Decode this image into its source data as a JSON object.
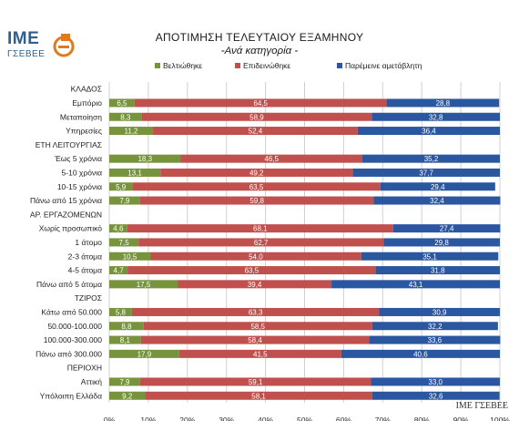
{
  "logo": {
    "brand": "IME",
    "org": "ΓΣΕΒΕΕ"
  },
  "footer": "IME ΓΣΕΒΕΕ",
  "colors": {
    "improved": "#77933c",
    "worsened": "#c0504d",
    "unchanged": "#2b56a0"
  },
  "chart_data": {
    "type": "bar",
    "orientation": "horizontal",
    "stacked": true,
    "percent_stacked": true,
    "title": "ΑΠΟΤΙΜΗΣΗ ΤΕΛΕΥΤΑΙΟΥ ΕΞΑΜΗΝΟΥ",
    "subtitle": "-Ανά κατηγορία -",
    "legend_position": "top",
    "xlim": [
      0,
      100
    ],
    "x_ticks": [
      "0%",
      "10%",
      "20%",
      "30%",
      "40%",
      "50%",
      "60%",
      "70%",
      "80%",
      "90%",
      "100%"
    ],
    "grid": true,
    "series": [
      {
        "name": "Βελτιώθηκε",
        "color": "#77933c"
      },
      {
        "name": "Επιδεινώθηκε",
        "color": "#c0504d"
      },
      {
        "name": "Παρέμεινε αμετάβλητη",
        "color": "#2b56a0"
      }
    ],
    "rows": [
      {
        "label": "ΚΛΑΔΟΣ",
        "header": true
      },
      {
        "label": "Εμπόριο",
        "values": [
          6.5,
          64.5,
          28.8
        ],
        "labels": [
          "6,5",
          "64,5",
          "28,8"
        ]
      },
      {
        "label": "Μεταποίηση",
        "values": [
          8.3,
          58.9,
          32.8
        ],
        "labels": [
          "8,3",
          "58,9",
          "32,8"
        ]
      },
      {
        "label": "Υπηρεσίες",
        "values": [
          11.2,
          52.4,
          36.4
        ],
        "labels": [
          "11,2",
          "52,4",
          "36,4"
        ]
      },
      {
        "label": "ΕΤΗ ΛΕΙΤΟΥΡΓΙΑΣ",
        "header": true
      },
      {
        "label": "Έως 5 χρόνια",
        "values": [
          18.3,
          46.5,
          35.2
        ],
        "labels": [
          "18,3",
          "46,5",
          "35,2"
        ]
      },
      {
        "label": "5-10 χρόνια",
        "values": [
          13.1,
          49.2,
          37.7
        ],
        "labels": [
          "13,1",
          "49,2",
          "37,7"
        ]
      },
      {
        "label": "10-15 χρόνια",
        "values": [
          5.9,
          63.5,
          29.4
        ],
        "labels": [
          "5,9",
          "63,5",
          "29,4"
        ]
      },
      {
        "label": "Πάνω από 15 χρόνια",
        "values": [
          7.9,
          59.8,
          32.4
        ],
        "labels": [
          "7,9",
          "59,8",
          "32,4"
        ]
      },
      {
        "label": "ΑΡ. ΕΡΓΑΖΟΜΕΝΩΝ",
        "header": true
      },
      {
        "label": "Χωρίς προσωπικό",
        "values": [
          4.6,
          68.1,
          27.4
        ],
        "labels": [
          "4,6",
          "68,1",
          "27,4"
        ]
      },
      {
        "label": "1 άτομο",
        "values": [
          7.5,
          62.7,
          29.8
        ],
        "labels": [
          "7,5",
          "62,7",
          "29,8"
        ]
      },
      {
        "label": "2-3 άτομα",
        "values": [
          10.5,
          54.0,
          35.1
        ],
        "labels": [
          "10,5",
          "54,0",
          "35,1"
        ]
      },
      {
        "label": "4-5 άτομα",
        "values": [
          4.7,
          63.5,
          31.8
        ],
        "labels": [
          "4,7",
          "63,5",
          "31,8"
        ]
      },
      {
        "label": "Πάνω από 5 άτομα",
        "values": [
          17.5,
          39.4,
          43.1
        ],
        "labels": [
          "17,5",
          "39,4",
          "43,1"
        ]
      },
      {
        "label": "ΤΖΙΡΟΣ",
        "header": true
      },
      {
        "label": "Κάτω από 50.000",
        "values": [
          5.8,
          63.3,
          30.9
        ],
        "labels": [
          "5,8",
          "63,3",
          "30,9"
        ]
      },
      {
        "label": "50.000-100.000",
        "values": [
          8.8,
          58.5,
          32.2
        ],
        "labels": [
          "8,8",
          "58,5",
          "32,2"
        ]
      },
      {
        "label": "100.000-300.000",
        "values": [
          8.1,
          58.4,
          33.6
        ],
        "labels": [
          "8,1",
          "58,4",
          "33,6"
        ]
      },
      {
        "label": "Πάνω από 300.000",
        "values": [
          17.9,
          41.5,
          40.6
        ],
        "labels": [
          "17,9",
          "41,5",
          "40,6"
        ]
      },
      {
        "label": "ΠΕΡΙΟΧΗ",
        "header": true
      },
      {
        "label": "Αττική",
        "values": [
          7.9,
          59.1,
          33.0
        ],
        "labels": [
          "7,9",
          "59,1",
          "33,0"
        ]
      },
      {
        "label": "Υπόλοιπη Ελλάδα",
        "values": [
          9.2,
          58.1,
          32.6
        ],
        "labels": [
          "9,2",
          "58,1",
          "32,6"
        ]
      }
    ]
  }
}
